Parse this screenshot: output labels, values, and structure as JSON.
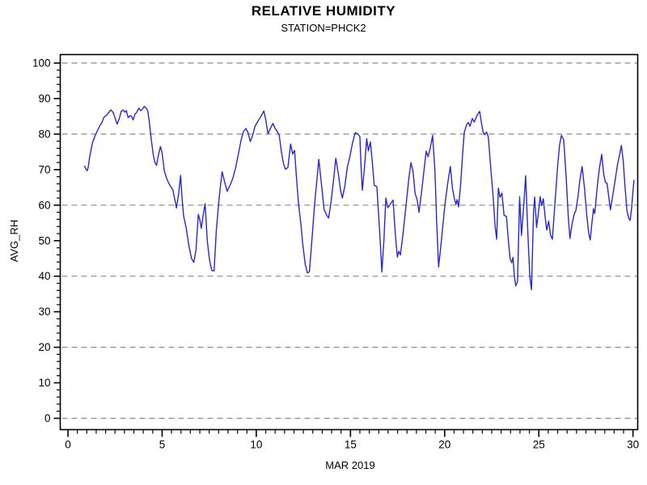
{
  "header": {
    "title": "RELATIVE HUMIDITY",
    "subtitle": "STATION=PHCK2"
  },
  "colors": {
    "line": "#2828cf",
    "grid": "#8a8a8a",
    "axis": "#000000",
    "background": "#ffffff"
  },
  "chart_data": {
    "type": "line",
    "title": "RELATIVE HUMIDITY",
    "subtitle": "STATION=PHCK2",
    "xlabel": "MAR 2019",
    "ylabel": "AVG_RH",
    "xlim": [
      0,
      30
    ],
    "ylim": [
      0,
      100
    ],
    "x_major_ticks": [
      0,
      5,
      10,
      15,
      20,
      25,
      30
    ],
    "x_minor_tick_step": 0.5,
    "y_major_ticks": [
      0,
      10,
      20,
      30,
      40,
      50,
      60,
      70,
      80,
      90,
      100
    ],
    "y_minor_tick_step": 2,
    "gridlines_y": [
      0,
      20,
      40,
      60,
      80,
      100
    ],
    "grid_style": "dashed",
    "legend_position": "none",
    "series": [
      {
        "name": "AVG_RH",
        "color": "#2828cf",
        "points": [
          [
            0.88,
            71.0
          ],
          [
            0.95,
            70.2
          ],
          [
            1.02,
            69.7
          ],
          [
            1.08,
            70.8
          ],
          [
            1.15,
            73.5
          ],
          [
            1.3,
            77.5
          ],
          [
            1.42,
            79.3
          ],
          [
            1.55,
            80.8
          ],
          [
            1.68,
            82.2
          ],
          [
            1.8,
            83.2
          ],
          [
            1.92,
            84.8
          ],
          [
            2.05,
            85.3
          ],
          [
            2.18,
            86.2
          ],
          [
            2.28,
            86.8
          ],
          [
            2.4,
            86.1
          ],
          [
            2.5,
            84.6
          ],
          [
            2.61,
            82.8
          ],
          [
            2.72,
            84.2
          ],
          [
            2.83,
            86.4
          ],
          [
            2.93,
            86.8
          ],
          [
            3.02,
            86.2
          ],
          [
            3.1,
            86.6
          ],
          [
            3.2,
            84.6
          ],
          [
            3.3,
            85.2
          ],
          [
            3.38,
            85.0
          ],
          [
            3.46,
            84.0
          ],
          [
            3.56,
            85.6
          ],
          [
            3.66,
            86.2
          ],
          [
            3.76,
            87.3
          ],
          [
            3.86,
            86.6
          ],
          [
            3.95,
            87.0
          ],
          [
            4.05,
            87.8
          ],
          [
            4.15,
            87.3
          ],
          [
            4.24,
            86.6
          ],
          [
            4.32,
            83.5
          ],
          [
            4.42,
            78.8
          ],
          [
            4.53,
            74.2
          ],
          [
            4.62,
            72.0
          ],
          [
            4.7,
            71.2
          ],
          [
            4.8,
            74.0
          ],
          [
            4.91,
            76.5
          ],
          [
            5.0,
            74.8
          ],
          [
            5.12,
            69.6
          ],
          [
            5.24,
            67.6
          ],
          [
            5.35,
            66.2
          ],
          [
            5.46,
            65.2
          ],
          [
            5.57,
            64.3
          ],
          [
            5.66,
            62.0
          ],
          [
            5.76,
            59.2
          ],
          [
            5.88,
            63.2
          ],
          [
            5.98,
            68.4
          ],
          [
            6.06,
            62.0
          ],
          [
            6.14,
            57.0
          ],
          [
            6.28,
            53.5
          ],
          [
            6.42,
            48.6
          ],
          [
            6.56,
            45.0
          ],
          [
            6.68,
            43.9
          ],
          [
            6.8,
            47.5
          ],
          [
            6.92,
            57.4
          ],
          [
            7.0,
            56.0
          ],
          [
            7.08,
            53.5
          ],
          [
            7.18,
            57.2
          ],
          [
            7.28,
            60.4
          ],
          [
            7.4,
            50.0
          ],
          [
            7.52,
            44.5
          ],
          [
            7.64,
            41.6
          ],
          [
            7.76,
            41.5
          ],
          [
            7.88,
            53.0
          ],
          [
            8.02,
            61.5
          ],
          [
            8.1,
            65.5
          ],
          [
            8.19,
            69.4
          ],
          [
            8.32,
            66.5
          ],
          [
            8.45,
            63.9
          ],
          [
            8.6,
            65.5
          ],
          [
            8.75,
            67.5
          ],
          [
            8.9,
            70.5
          ],
          [
            9.05,
            74.5
          ],
          [
            9.2,
            78.5
          ],
          [
            9.32,
            80.8
          ],
          [
            9.45,
            81.6
          ],
          [
            9.57,
            80.3
          ],
          [
            9.68,
            77.9
          ],
          [
            9.8,
            79.5
          ],
          [
            9.93,
            82.2
          ],
          [
            10.08,
            83.6
          ],
          [
            10.25,
            85.0
          ],
          [
            10.4,
            86.5
          ],
          [
            10.5,
            84.2
          ],
          [
            10.62,
            80.1
          ],
          [
            10.75,
            81.6
          ],
          [
            10.88,
            83.0
          ],
          [
            11.0,
            81.6
          ],
          [
            11.1,
            80.9
          ],
          [
            11.22,
            79.6
          ],
          [
            11.35,
            74.5
          ],
          [
            11.45,
            71.5
          ],
          [
            11.55,
            70.1
          ],
          [
            11.68,
            70.6
          ],
          [
            11.82,
            77.2
          ],
          [
            11.93,
            74.4
          ],
          [
            12.03,
            75.4
          ],
          [
            12.13,
            68.0
          ],
          [
            12.24,
            60.4
          ],
          [
            12.36,
            55.0
          ],
          [
            12.47,
            48.9
          ],
          [
            12.6,
            43.2
          ],
          [
            12.72,
            40.9
          ],
          [
            12.82,
            41.3
          ],
          [
            12.95,
            50.0
          ],
          [
            13.1,
            60.5
          ],
          [
            13.2,
            66.0
          ],
          [
            13.32,
            72.9
          ],
          [
            13.46,
            65.8
          ],
          [
            13.6,
            58.8
          ],
          [
            13.74,
            57.1
          ],
          [
            13.84,
            56.4
          ],
          [
            13.96,
            60.5
          ],
          [
            14.1,
            67.0
          ],
          [
            14.22,
            73.2
          ],
          [
            14.36,
            68.8
          ],
          [
            14.48,
            64.0
          ],
          [
            14.57,
            62.0
          ],
          [
            14.7,
            65.4
          ],
          [
            14.83,
            70.6
          ],
          [
            14.97,
            73.8
          ],
          [
            15.1,
            77.3
          ],
          [
            15.25,
            80.4
          ],
          [
            15.38,
            80.1
          ],
          [
            15.5,
            79.3
          ],
          [
            15.56,
            71.0
          ],
          [
            15.63,
            64.2
          ],
          [
            15.74,
            70.5
          ],
          [
            15.86,
            78.7
          ],
          [
            15.95,
            75.3
          ],
          [
            16.06,
            77.8
          ],
          [
            16.16,
            72.0
          ],
          [
            16.26,
            65.6
          ],
          [
            16.4,
            65.2
          ],
          [
            16.54,
            53.5
          ],
          [
            16.67,
            41.2
          ],
          [
            16.78,
            50.5
          ],
          [
            16.88,
            62.0
          ],
          [
            16.98,
            59.3
          ],
          [
            17.1,
            60.2
          ],
          [
            17.26,
            61.4
          ],
          [
            17.38,
            52.0
          ],
          [
            17.49,
            45.4
          ],
          [
            17.57,
            47.0
          ],
          [
            17.65,
            46.0
          ],
          [
            17.8,
            52.5
          ],
          [
            17.95,
            60.0
          ],
          [
            18.1,
            67.5
          ],
          [
            18.21,
            72.0
          ],
          [
            18.32,
            69.5
          ],
          [
            18.43,
            63.4
          ],
          [
            18.54,
            61.5
          ],
          [
            18.64,
            58.0
          ],
          [
            18.78,
            64.0
          ],
          [
            18.92,
            70.5
          ],
          [
            19.02,
            75.2
          ],
          [
            19.12,
            73.6
          ],
          [
            19.24,
            76.2
          ],
          [
            19.36,
            79.6
          ],
          [
            19.48,
            70.0
          ],
          [
            19.58,
            55.0
          ],
          [
            19.68,
            42.6
          ],
          [
            19.8,
            48.5
          ],
          [
            19.92,
            55.0
          ],
          [
            20.02,
            60.4
          ],
          [
            20.16,
            66.0
          ],
          [
            20.3,
            70.9
          ],
          [
            20.42,
            64.5
          ],
          [
            20.52,
            61.8
          ],
          [
            20.6,
            60.2
          ],
          [
            20.66,
            61.6
          ],
          [
            20.74,
            59.5
          ],
          [
            20.85,
            66.0
          ],
          [
            20.95,
            74.0
          ],
          [
            21.04,
            80.4
          ],
          [
            21.15,
            82.4
          ],
          [
            21.25,
            83.3
          ],
          [
            21.35,
            82.2
          ],
          [
            21.47,
            84.4
          ],
          [
            21.57,
            83.4
          ],
          [
            21.72,
            85.3
          ],
          [
            21.86,
            86.4
          ],
          [
            21.96,
            83.0
          ],
          [
            22.04,
            80.6
          ],
          [
            22.13,
            79.8
          ],
          [
            22.22,
            80.6
          ],
          [
            22.32,
            79.2
          ],
          [
            22.45,
            70.2
          ],
          [
            22.58,
            62.0
          ],
          [
            22.68,
            54.0
          ],
          [
            22.76,
            50.4
          ],
          [
            22.85,
            64.8
          ],
          [
            22.94,
            62.2
          ],
          [
            23.04,
            63.4
          ],
          [
            23.15,
            57.2
          ],
          [
            23.28,
            56.8
          ],
          [
            23.4,
            49.0
          ],
          [
            23.48,
            44.8
          ],
          [
            23.56,
            43.8
          ],
          [
            23.63,
            45.3
          ],
          [
            23.7,
            40.0
          ],
          [
            23.78,
            37.3
          ],
          [
            23.87,
            38.5
          ],
          [
            23.98,
            62.4
          ],
          [
            24.08,
            51.5
          ],
          [
            24.2,
            60.0
          ],
          [
            24.3,
            68.3
          ],
          [
            24.42,
            52.0
          ],
          [
            24.52,
            40.0
          ],
          [
            24.61,
            36.2
          ],
          [
            24.72,
            58.0
          ],
          [
            24.78,
            62.3
          ],
          [
            24.88,
            53.7
          ],
          [
            25.0,
            59.0
          ],
          [
            25.07,
            62.4
          ],
          [
            25.15,
            59.9
          ],
          [
            25.24,
            61.8
          ],
          [
            25.33,
            57.0
          ],
          [
            25.42,
            53.0
          ],
          [
            25.52,
            55.5
          ],
          [
            25.62,
            51.6
          ],
          [
            25.72,
            50.4
          ],
          [
            25.85,
            60.0
          ],
          [
            26.0,
            71.0
          ],
          [
            26.1,
            77.0
          ],
          [
            26.2,
            79.6
          ],
          [
            26.32,
            78.4
          ],
          [
            26.45,
            68.0
          ],
          [
            26.56,
            57.0
          ],
          [
            26.65,
            50.6
          ],
          [
            26.76,
            54.5
          ],
          [
            26.88,
            57.5
          ],
          [
            26.97,
            58.5
          ],
          [
            27.08,
            62.5
          ],
          [
            27.18,
            67.0
          ],
          [
            27.3,
            70.9
          ],
          [
            27.42,
            65.0
          ],
          [
            27.55,
            57.0
          ],
          [
            27.65,
            52.0
          ],
          [
            27.73,
            50.2
          ],
          [
            27.82,
            55.0
          ],
          [
            27.9,
            59.0
          ],
          [
            27.97,
            57.6
          ],
          [
            28.1,
            65.0
          ],
          [
            28.22,
            70.5
          ],
          [
            28.34,
            74.3
          ],
          [
            28.45,
            68.5
          ],
          [
            28.54,
            66.4
          ],
          [
            28.62,
            66.2
          ],
          [
            28.72,
            62.0
          ],
          [
            28.8,
            58.7
          ],
          [
            28.92,
            62.5
          ],
          [
            29.05,
            67.0
          ],
          [
            29.18,
            71.5
          ],
          [
            29.3,
            74.5
          ],
          [
            29.38,
            76.8
          ],
          [
            29.48,
            72.5
          ],
          [
            29.58,
            65.0
          ],
          [
            29.68,
            58.5
          ],
          [
            29.78,
            56.2
          ],
          [
            29.85,
            55.7
          ],
          [
            29.93,
            59.5
          ],
          [
            30.0,
            64.0
          ],
          [
            30.05,
            67.0
          ]
        ]
      }
    ]
  }
}
